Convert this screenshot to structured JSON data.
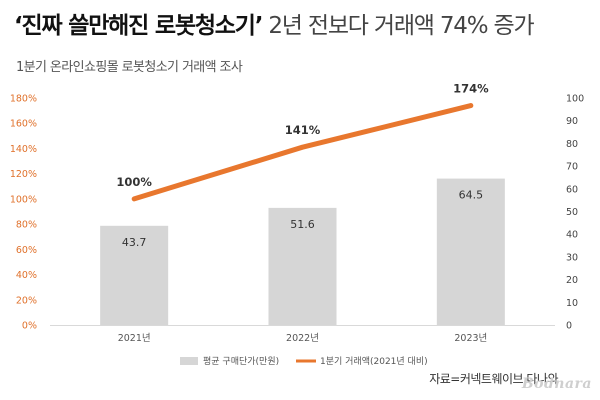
{
  "header": {
    "title_bold": "‘진짜 쓸만해진 로봇청소기’",
    "title_rest": " 2년 전보다 거래액 74% 증가",
    "subtitle": "1분기 온라인쇼핑몰 로봇청소기 거래액 조사"
  },
  "chart_data": {
    "type": "bar+line",
    "categories": [
      "2021년",
      "2022년",
      "2023년"
    ],
    "bars": {
      "name": "평균 구매단가(만원)",
      "values": [
        43.7,
        51.6,
        64.5
      ],
      "color": "#d6d6d6",
      "axis": "right"
    },
    "line": {
      "name": "1분기 거래액(2021년 대비)",
      "values": [
        100,
        141,
        174
      ],
      "value_labels": [
        "100%",
        "141%",
        "174%"
      ],
      "color": "#e8772e",
      "axis": "left"
    },
    "left_axis": {
      "ticks": [
        "0%",
        "20%",
        "40%",
        "60%",
        "80%",
        "100%",
        "120%",
        "140%",
        "160%",
        "180%"
      ],
      "ylim": [
        0,
        180
      ],
      "color": "#e0712b"
    },
    "right_axis": {
      "ticks": [
        "0",
        "10",
        "20",
        "30",
        "40",
        "50",
        "60",
        "70",
        "80",
        "90",
        "100"
      ],
      "ylim": [
        0,
        100
      ]
    },
    "legend_position": "bottom"
  },
  "footer": {
    "source": "자료=커넥트웨이브 다나와",
    "logo": "Bodnara"
  }
}
